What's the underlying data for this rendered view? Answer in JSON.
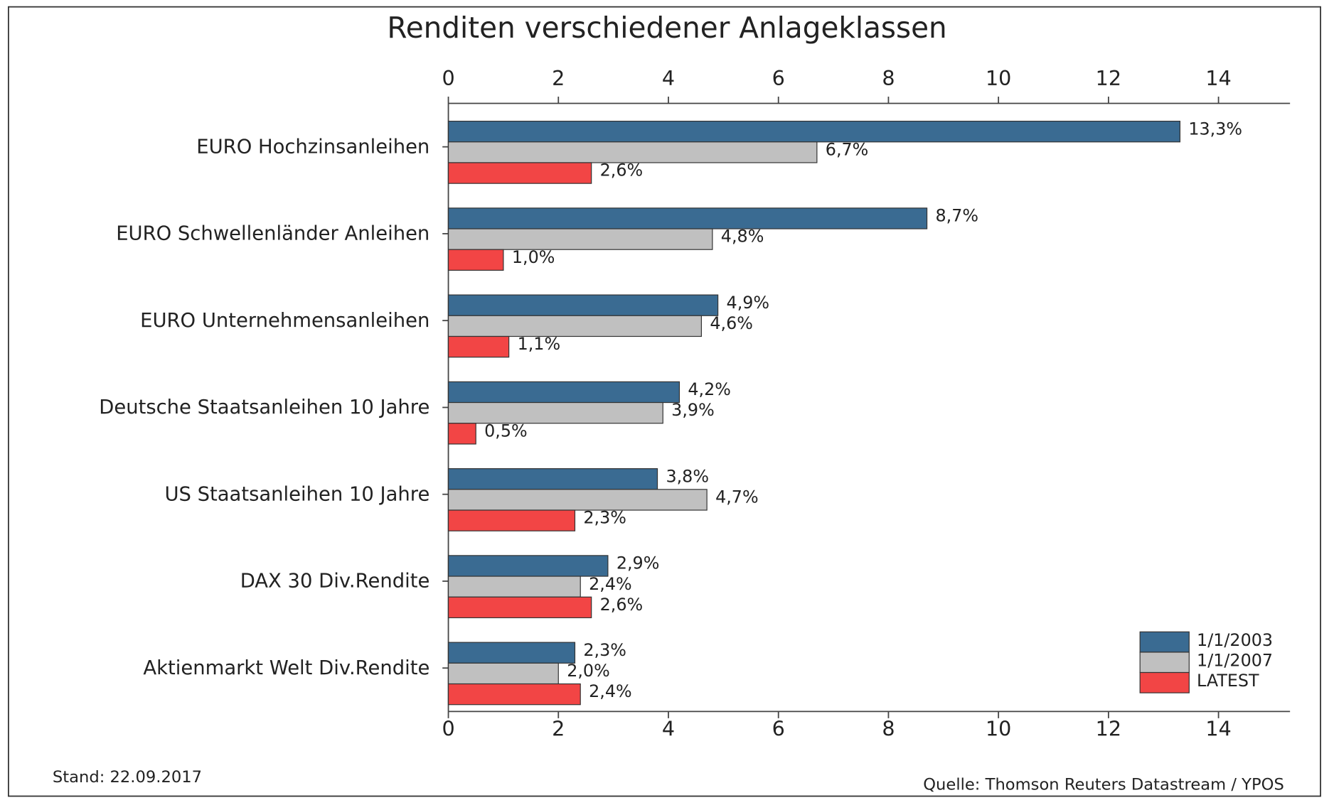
{
  "chart_data": {
    "type": "bar",
    "orientation": "horizontal",
    "title": "Renditen verschiedener Anlageklassen",
    "categories": [
      "EURO Hochzinsanleihen",
      "EURO Schwellenländer Anleihen",
      "EURO Unternehmensanleihen",
      "Deutsche Staatsanleihen 10 Jahre",
      "US Staatsanleihen 10 Jahre",
      "DAX 30 Div.Rendite",
      "Aktienmarkt Welt Div.Rendite"
    ],
    "series": [
      {
        "name": "1/1/2003",
        "color": "#3a6b92",
        "values": [
          13.3,
          8.7,
          4.9,
          4.2,
          3.8,
          2.9,
          2.3
        ],
        "value_labels": [
          "13,3%",
          "8,7%",
          "4,9%",
          "4,2%",
          "3,8%",
          "2,9%",
          "2,3%"
        ]
      },
      {
        "name": "1/1/2007",
        "color": "#c0c0c0",
        "values": [
          6.7,
          4.8,
          4.6,
          3.9,
          4.7,
          2.4,
          2.0
        ],
        "value_labels": [
          "6,7%",
          "4,8%",
          "4,6%",
          "3,9%",
          "4,7%",
          "2,4%",
          "2,0%"
        ]
      },
      {
        "name": "LATEST",
        "color": "#f24545",
        "values": [
          2.6,
          1.0,
          1.1,
          0.5,
          2.3,
          2.6,
          2.4
        ],
        "value_labels": [
          "2,6%",
          "1,0%",
          "1,1%",
          "0,5%",
          "2,3%",
          "2,6%",
          "2,4%"
        ]
      }
    ],
    "xlim": [
      0,
      15.3
    ],
    "xticks": [
      0,
      2,
      4,
      6,
      8,
      10,
      12,
      14
    ],
    "legend": "lower right",
    "footnote_left": "Stand: 22.09.2017",
    "footnote_right": "Quelle: Thomson Reuters Datastream / YPOS"
  }
}
